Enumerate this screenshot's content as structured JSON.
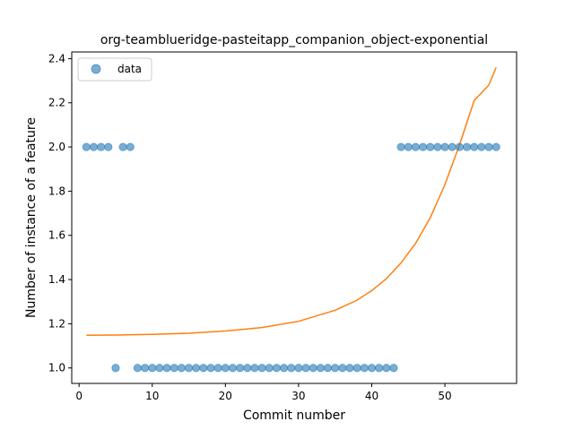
{
  "chart_data": {
    "type": "scatter",
    "title": "org-teamblueridge-pasteitapp_companion_object-exponential",
    "xlabel": "Commit number",
    "ylabel": "Number of instance of a feature",
    "xlim": [
      -1,
      59.8
    ],
    "ylim": [
      0.93,
      2.43
    ],
    "xticks": [
      0,
      10,
      20,
      30,
      40,
      50
    ],
    "yticks": [
      1.0,
      1.2,
      1.4,
      1.6,
      1.8,
      2.0,
      2.2,
      2.4
    ],
    "ytick_labels": [
      "1.0",
      "1.2",
      "1.4",
      "1.6",
      "1.8",
      "2.0",
      "2.2",
      "2.4"
    ],
    "legend": {
      "entries": [
        "data"
      ],
      "position": "top-left"
    },
    "colors": {
      "points": "#1f77b4",
      "fit": "#ff7f0e"
    },
    "series": [
      {
        "name": "data",
        "kind": "scatter",
        "x": [
          1,
          2,
          3,
          4,
          5,
          6,
          7,
          8,
          9,
          10,
          11,
          12,
          13,
          14,
          15,
          16,
          17,
          18,
          19,
          20,
          21,
          22,
          23,
          24,
          25,
          26,
          27,
          28,
          29,
          30,
          31,
          32,
          33,
          34,
          35,
          36,
          37,
          38,
          39,
          40,
          41,
          42,
          43,
          44,
          45,
          46,
          47,
          48,
          49,
          50,
          51,
          52,
          53,
          54,
          55,
          56,
          57
        ],
        "y": [
          2,
          2,
          2,
          2,
          1,
          2,
          2,
          1,
          1,
          1,
          1,
          1,
          1,
          1,
          1,
          1,
          1,
          1,
          1,
          1,
          1,
          1,
          1,
          1,
          1,
          1,
          1,
          1,
          1,
          1,
          1,
          1,
          1,
          1,
          1,
          1,
          1,
          1,
          1,
          1,
          1,
          1,
          1,
          2,
          2,
          2,
          2,
          2,
          2,
          2,
          2,
          2,
          2,
          2,
          2,
          2,
          2
        ]
      },
      {
        "kind": "line",
        "x": [
          1,
          5,
          10,
          15,
          20,
          25,
          30,
          35,
          38,
          40,
          42,
          44,
          46,
          48,
          50,
          52,
          54,
          56,
          57
        ],
        "y": [
          1.148,
          1.149,
          1.152,
          1.157,
          1.167,
          1.183,
          1.211,
          1.261,
          1.307,
          1.35,
          1.404,
          1.475,
          1.564,
          1.68,
          1.83,
          2.01,
          2.21,
          2.28,
          2.36
        ]
      }
    ]
  }
}
